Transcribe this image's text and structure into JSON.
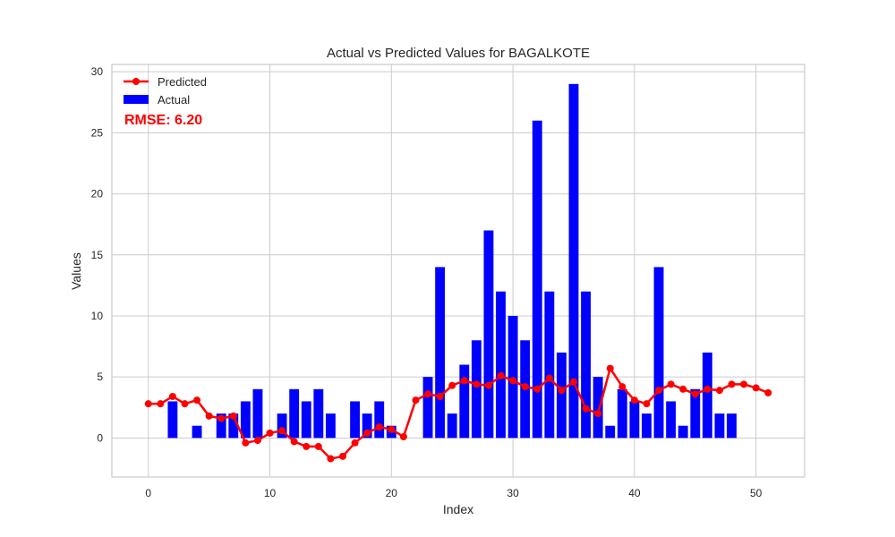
{
  "chart_data": {
    "type": "bar",
    "title": "Actual vs Predicted Values for BAGALKOTE",
    "xlabel": "Index",
    "ylabel": "Values",
    "xlim": [
      -3,
      54
    ],
    "ylim": [
      -3.2,
      30.6
    ],
    "xticks": [
      0,
      10,
      20,
      30,
      40,
      50
    ],
    "yticks": [
      0,
      5,
      10,
      15,
      20,
      25,
      30
    ],
    "grid": true,
    "legend_position": "top-left",
    "annotation": "RMSE: 6.20",
    "series": [
      {
        "name": "Actual",
        "kind": "bar",
        "color": "#0000ff",
        "x": [
          0,
          1,
          2,
          3,
          4,
          5,
          6,
          7,
          8,
          9,
          10,
          11,
          12,
          13,
          14,
          15,
          16,
          17,
          18,
          19,
          20,
          21,
          22,
          23,
          24,
          25,
          26,
          27,
          28,
          29,
          30,
          31,
          32,
          33,
          34,
          35,
          36,
          37,
          38,
          39,
          40,
          41,
          42,
          43,
          44,
          45,
          46,
          47,
          48,
          49,
          50,
          51
        ],
        "values": [
          0,
          0,
          3,
          0,
          1,
          0,
          2,
          2,
          3,
          4,
          0,
          2,
          4,
          3,
          4,
          2,
          0,
          3,
          2,
          3,
          1,
          0,
          0,
          5,
          14,
          2,
          6,
          8,
          17,
          12,
          10,
          8,
          26,
          12,
          7,
          29,
          12,
          5,
          1,
          4,
          3,
          2,
          14,
          3,
          1,
          4,
          7,
          2,
          2,
          0,
          0,
          0
        ]
      },
      {
        "name": "Predicted",
        "kind": "line",
        "color": "#ff0000",
        "x": [
          0,
          1,
          2,
          3,
          4,
          5,
          6,
          7,
          8,
          9,
          10,
          11,
          12,
          13,
          14,
          15,
          16,
          17,
          18,
          19,
          20,
          21,
          22,
          23,
          24,
          25,
          26,
          27,
          28,
          29,
          30,
          31,
          32,
          33,
          34,
          35,
          36,
          37,
          38,
          39,
          40,
          41,
          42,
          43,
          44,
          45,
          46,
          47,
          48,
          49,
          50,
          51
        ],
        "values": [
          2.8,
          2.8,
          3.4,
          2.8,
          3.1,
          1.8,
          1.6,
          1.8,
          -0.4,
          -0.2,
          0.4,
          0.6,
          -0.3,
          -0.7,
          -0.7,
          -1.7,
          -1.5,
          -0.4,
          0.4,
          0.9,
          0.7,
          0.1,
          3.1,
          3.6,
          3.4,
          4.3,
          4.7,
          4.4,
          4.3,
          5.1,
          4.7,
          4.2,
          4.0,
          4.9,
          3.9,
          4.6,
          2.4,
          2.0,
          5.7,
          4.2,
          3.1,
          2.8,
          3.9,
          4.4,
          4.0,
          3.6,
          4.0,
          3.9,
          4.4,
          4.4,
          4.1,
          3.7
        ]
      }
    ]
  }
}
